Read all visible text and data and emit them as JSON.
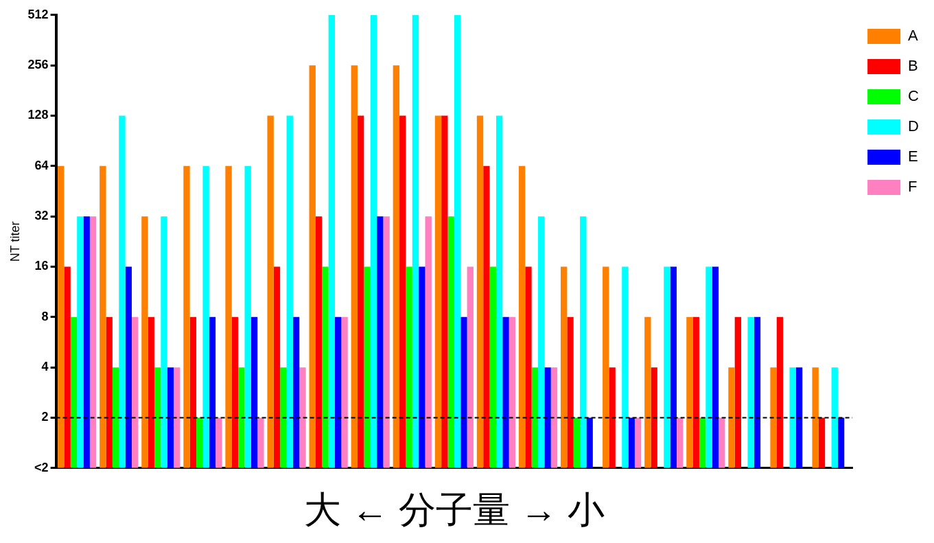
{
  "chart_data": {
    "type": "bar",
    "ylabel": "NT titer",
    "xlabel": "大 ← 分子量 → 小",
    "categories": [
      null,
      null,
      null,
      null,
      null,
      null,
      null,
      null,
      null,
      null,
      null,
      null,
      null,
      null,
      null,
      null,
      null,
      null,
      null
    ],
    "series": [
      {
        "name": "A",
        "color": "#ff7f00",
        "values": [
          64,
          64,
          32,
          64,
          64,
          128,
          256,
          256,
          256,
          128,
          128,
          64,
          16,
          16,
          8,
          8,
          4,
          4,
          4
        ]
      },
      {
        "name": "B",
        "color": "#ff0000",
        "values": [
          16,
          8,
          8,
          8,
          8,
          16,
          32,
          128,
          128,
          128,
          64,
          16,
          8,
          4,
          4,
          8,
          8,
          8,
          2
        ]
      },
      {
        "name": "C",
        "color": "#00ff00",
        "values": [
          8,
          4,
          4,
          2,
          4,
          4,
          16,
          16,
          16,
          32,
          16,
          4,
          2,
          null,
          null,
          2,
          null,
          null,
          null
        ]
      },
      {
        "name": "D",
        "color": "#00ffff",
        "values": [
          32,
          128,
          32,
          64,
          64,
          128,
          512,
          512,
          512,
          512,
          128,
          32,
          32,
          16,
          16,
          16,
          8,
          4,
          4
        ]
      },
      {
        "name": "E",
        "color": "#0000ff",
        "values": [
          32,
          16,
          4,
          8,
          8,
          8,
          8,
          32,
          16,
          8,
          8,
          4,
          2,
          2,
          16,
          16,
          8,
          4,
          2
        ]
      },
      {
        "name": "F",
        "color": "#ff80c0",
        "values": [
          32,
          8,
          4,
          2,
          2,
          4,
          8,
          32,
          32,
          16,
          8,
          4,
          null,
          2,
          2,
          2,
          null,
          null,
          null
        ]
      }
    ],
    "log": "y",
    "ylim": [
      1,
      512
    ],
    "yticks": [
      {
        "value": 1,
        "label": "<2"
      },
      2,
      4,
      8,
      16,
      32,
      64,
      128,
      256,
      512
    ],
    "ref_lines": [
      {
        "axis": "y",
        "value": 2,
        "color": "#000000",
        "line_style": "dashed"
      }
    ],
    "grid": false,
    "legend": "top right"
  }
}
